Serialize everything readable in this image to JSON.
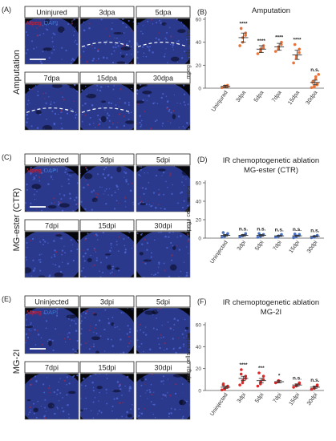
{
  "panels": [
    {
      "letter": "(A)",
      "side_label": "Amputation",
      "marker_red": "Mpeg",
      "marker_blue": "DAPI",
      "image_titles": [
        "Uninjured",
        "3dpa",
        "5dpa",
        "7dpa",
        "15dpa",
        "30dpa"
      ],
      "dashed_wound_lines": [
        false,
        true,
        true,
        true,
        true,
        false
      ]
    },
    {
      "letter": "(C)",
      "side_label": "MG-ester (CTR)",
      "marker_red": "Mpeg",
      "marker_blue": "DAPI",
      "image_titles": [
        "Uninjected",
        "3dpi",
        "5dpi",
        "7dpi",
        "15dpi",
        "30dpi"
      ],
      "dashed_wound_lines": [
        false,
        false,
        false,
        false,
        false,
        false
      ]
    },
    {
      "letter": "(E)",
      "side_label": "MG-2I",
      "marker_red": "Mpeg",
      "marker_blue": "DAPI",
      "image_titles": [
        "Uninjected",
        "3dpi",
        "5dpi",
        "7dpi",
        "15dpi",
        "30dpi"
      ],
      "dashed_wound_lines": [
        false,
        false,
        false,
        false,
        false,
        false
      ]
    }
  ],
  "colors": {
    "tissue_blue": "#2f3f9a",
    "background_black": "#05060c",
    "mpeg_red": "#cc2233",
    "dapi_blue": "#3a7bd5",
    "scatter_orange": "#e8743b",
    "scatter_blue": "#4a72c4",
    "scatter_red": "#e02828",
    "axis": "#555555"
  },
  "chart_data": [
    {
      "letter": "(B)",
      "type": "scatter",
      "title": "Amputation",
      "ylabel": "mpeg+ cells number",
      "ylim": [
        0,
        60
      ],
      "yticks": [
        0,
        20,
        40,
        60
      ],
      "categories": [
        "Uninjured",
        "3dpa",
        "5dpa",
        "7dpa",
        "15dpa",
        "30dpa"
      ],
      "means": [
        1.5,
        44,
        34,
        36,
        29,
        5
      ],
      "sem": [
        1,
        4,
        3,
        3,
        4,
        2
      ],
      "points": [
        [
          0.5,
          1,
          2,
          2.5,
          1.5
        ],
        [
          37,
          40,
          44,
          46,
          48,
          52
        ],
        [
          30,
          32,
          34,
          35,
          37
        ],
        [
          32,
          34,
          36,
          38,
          40
        ],
        [
          22,
          26,
          28,
          31,
          34,
          38
        ],
        [
          0.5,
          1,
          2,
          3,
          4,
          5,
          6,
          8,
          10,
          12
        ]
      ],
      "significance": [
        "",
        "****",
        "****",
        "****",
        "****",
        "n.s."
      ],
      "color": "#e8743b"
    },
    {
      "letter": "(D)",
      "type": "scatter",
      "title": "IR chemoptogenetic ablation",
      "subtitle": "MG-ester (CTR)",
      "ylabel": "mpeg+ cells number",
      "ylim": [
        0,
        60
      ],
      "yticks": [
        0,
        20,
        40,
        60
      ],
      "categories": [
        "Uninjected",
        "3dpi",
        "5dpi",
        "7dpi",
        "15dpi",
        "30dpi"
      ],
      "means": [
        3,
        3,
        3,
        2.5,
        2.5,
        2
      ],
      "sem": [
        1,
        1,
        1,
        0.5,
        0.5,
        0.5
      ],
      "points": [
        [
          1,
          2,
          3,
          4,
          5,
          6
        ],
        [
          1.5,
          2.5,
          3,
          4,
          5
        ],
        [
          1,
          2,
          3,
          3.5,
          4,
          5
        ],
        [
          1,
          2,
          2.5,
          3,
          4
        ],
        [
          0.5,
          1.5,
          2.5,
          3,
          4,
          4.5
        ],
        [
          0.5,
          1,
          2,
          2.5,
          3
        ]
      ],
      "significance": [
        "",
        "n.s.",
        "n.s.",
        "n.s.",
        "n.s.",
        "n.s."
      ],
      "color": "#4a72c4"
    },
    {
      "letter": "(F)",
      "type": "scatter",
      "title": "IR chemoptogenetic ablation",
      "subtitle": "MG-2I",
      "ylabel": "mpeg+ cells number",
      "ylim": [
        0,
        60
      ],
      "yticks": [
        0,
        20,
        40,
        60
      ],
      "categories": [
        "Uninjected",
        "3dpi",
        "5dpi",
        "7dpi",
        "15dpi",
        "30dpi"
      ],
      "means": [
        3,
        11,
        9,
        8,
        5,
        3
      ],
      "sem": [
        1,
        2,
        2,
        1,
        1,
        1
      ],
      "points": [
        [
          0.5,
          1,
          2,
          3,
          4,
          5,
          6
        ],
        [
          5,
          7,
          9,
          11,
          13,
          15,
          19
        ],
        [
          4,
          6,
          8,
          10,
          13,
          16
        ],
        [
          7,
          8,
          9
        ],
        [
          3,
          4,
          5,
          6,
          7
        ],
        [
          1,
          2,
          3,
          4,
          5
        ]
      ],
      "significance": [
        "",
        "****",
        "***",
        "*",
        "n.s.",
        "n.s."
      ],
      "color": "#e02828"
    }
  ]
}
